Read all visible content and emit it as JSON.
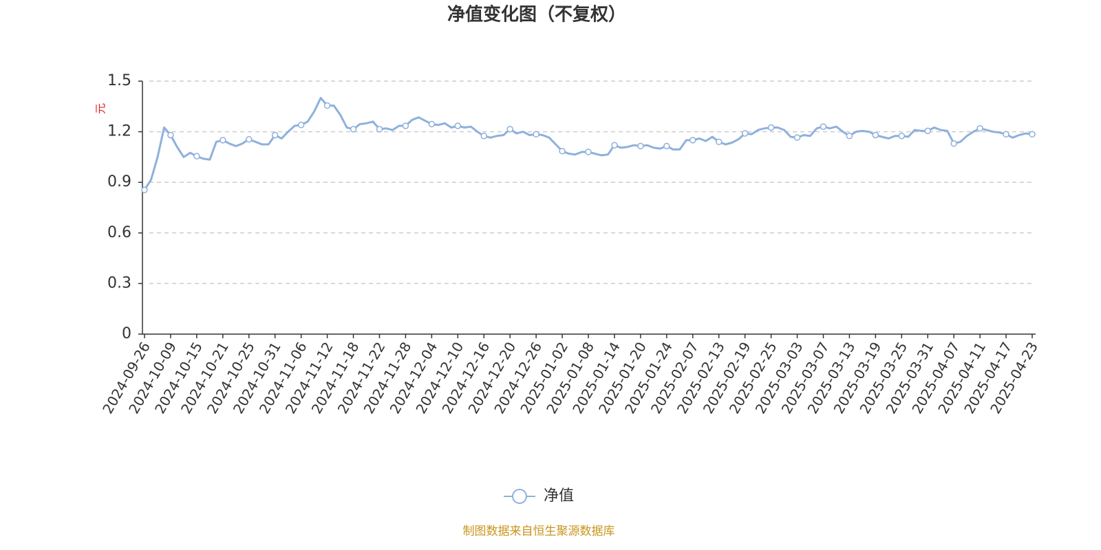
{
  "chart_data": {
    "type": "line",
    "title": "净值变化图（不复权）",
    "y_label": "元",
    "source": "制图数据来自恒生聚源数据库",
    "categories": [
      "2024-09-26",
      null,
      null,
      null,
      "2024-10-09",
      null,
      null,
      null,
      "2024-10-15",
      null,
      null,
      null,
      "2024-10-21",
      null,
      null,
      null,
      "2024-10-25",
      null,
      null,
      null,
      "2024-10-31",
      null,
      null,
      null,
      "2024-11-06",
      null,
      null,
      null,
      "2024-11-12",
      null,
      null,
      null,
      "2024-11-18",
      null,
      null,
      null,
      "2024-11-22",
      null,
      null,
      null,
      "2024-11-28",
      null,
      null,
      null,
      "2024-12-04",
      null,
      null,
      null,
      "2024-12-10",
      null,
      null,
      null,
      "2024-12-16",
      null,
      null,
      null,
      "2024-12-20",
      null,
      null,
      null,
      "2024-12-26",
      null,
      null,
      null,
      "2025-01-02",
      null,
      null,
      null,
      "2025-01-08",
      null,
      null,
      null,
      "2025-01-14",
      null,
      null,
      null,
      "2025-01-20",
      null,
      null,
      null,
      "2025-01-24",
      null,
      null,
      null,
      "2025-02-07",
      null,
      null,
      null,
      "2025-02-13",
      null,
      null,
      null,
      "2025-02-19",
      null,
      null,
      null,
      "2025-02-25",
      null,
      null,
      null,
      "2025-03-03",
      null,
      null,
      null,
      "2025-03-07",
      null,
      null,
      null,
      "2025-03-13",
      null,
      null,
      null,
      "2025-03-19",
      null,
      null,
      null,
      "2025-03-25",
      null,
      null,
      null,
      "2025-03-31",
      null,
      null,
      null,
      "2025-04-07",
      null,
      null,
      null,
      "2025-04-11",
      null,
      null,
      null,
      "2025-04-17",
      null,
      null,
      null,
      "2025-04-23"
    ],
    "series": [
      {
        "name": "净值",
        "color": "#8fb0dc",
        "values": [
          0.855,
          0.915,
          1.05,
          1.225,
          1.18,
          1.11,
          1.05,
          1.075,
          1.055,
          1.04,
          1.035,
          1.14,
          1.15,
          1.13,
          1.115,
          1.13,
          1.155,
          1.14,
          1.125,
          1.125,
          1.18,
          1.16,
          1.2,
          1.235,
          1.24,
          1.26,
          1.32,
          1.4,
          1.355,
          1.355,
          1.3,
          1.225,
          1.215,
          1.245,
          1.25,
          1.26,
          1.215,
          1.22,
          1.21,
          1.235,
          1.235,
          1.27,
          1.285,
          1.265,
          1.245,
          1.24,
          1.25,
          1.225,
          1.235,
          1.225,
          1.23,
          1.2,
          1.175,
          1.165,
          1.175,
          1.18,
          1.215,
          1.19,
          1.2,
          1.18,
          1.185,
          1.18,
          1.165,
          1.125,
          1.085,
          1.07,
          1.065,
          1.08,
          1.08,
          1.07,
          1.06,
          1.065,
          1.12,
          1.105,
          1.11,
          1.12,
          1.115,
          1.12,
          1.105,
          1.1,
          1.115,
          1.095,
          1.095,
          1.15,
          1.15,
          1.16,
          1.145,
          1.17,
          1.14,
          1.125,
          1.135,
          1.155,
          1.19,
          1.185,
          1.21,
          1.22,
          1.225,
          1.225,
          1.21,
          1.17,
          1.165,
          1.18,
          1.175,
          1.22,
          1.23,
          1.22,
          1.23,
          1.2,
          1.175,
          1.2,
          1.205,
          1.2,
          1.18,
          1.17,
          1.16,
          1.175,
          1.175,
          1.17,
          1.21,
          1.205,
          1.205,
          1.225,
          1.21,
          1.205,
          1.13,
          1.14,
          1.175,
          1.2,
          1.22,
          1.21,
          1.2,
          1.195,
          1.185,
          1.165,
          1.18,
          1.19,
          1.185
        ]
      }
    ],
    "ylim": [
      0,
      1.5
    ],
    "yticks": [
      0,
      0.3,
      0.6,
      0.9,
      1.2,
      1.5
    ],
    "grid": true
  }
}
